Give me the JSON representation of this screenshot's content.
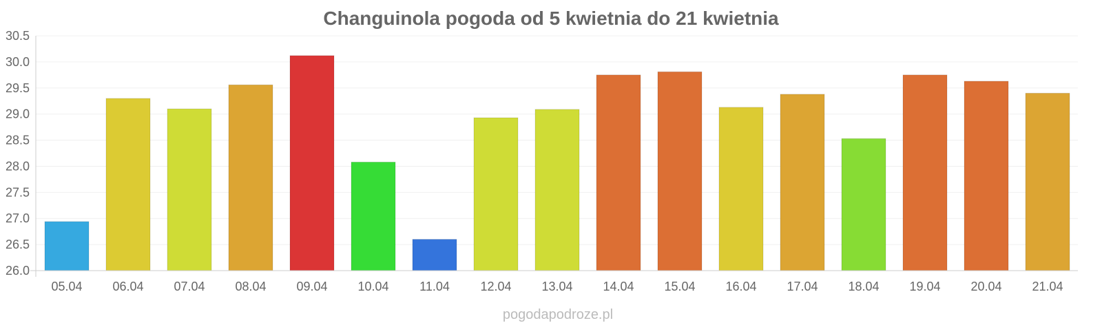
{
  "chart_data": {
    "type": "bar",
    "title": "Changuinola pogoda od 5 kwietnia do 21 kwietnia",
    "xlabel": "",
    "ylabel": "",
    "ylim": [
      26.0,
      30.5
    ],
    "yticks": [
      "26.0",
      "26.5",
      "27.0",
      "27.5",
      "28.0",
      "28.5",
      "29.0",
      "29.5",
      "30.0",
      "30.5"
    ],
    "grid": true,
    "categories": [
      "05.04",
      "06.04",
      "07.04",
      "08.04",
      "09.04",
      "10.04",
      "11.04",
      "12.04",
      "13.04",
      "14.04",
      "15.04",
      "16.04",
      "17.04",
      "18.04",
      "19.04",
      "20.04",
      "21.04"
    ],
    "values": [
      26.94,
      29.3,
      29.1,
      29.56,
      30.12,
      28.08,
      26.6,
      28.93,
      29.09,
      29.75,
      29.81,
      29.13,
      29.38,
      28.53,
      29.75,
      29.63,
      29.4
    ],
    "colors": [
      "#36a9e0",
      "#dccb33",
      "#cfdc36",
      "#dca533",
      "#db3535",
      "#36dc36",
      "#3474dc",
      "#cfdc36",
      "#cfdc36",
      "#dc6f34",
      "#dc6f34",
      "#dccb33",
      "#dca533",
      "#87dc34",
      "#dc6f34",
      "#dc6f34",
      "#dca533"
    ]
  },
  "watermark": "pogodapodroze.pl"
}
